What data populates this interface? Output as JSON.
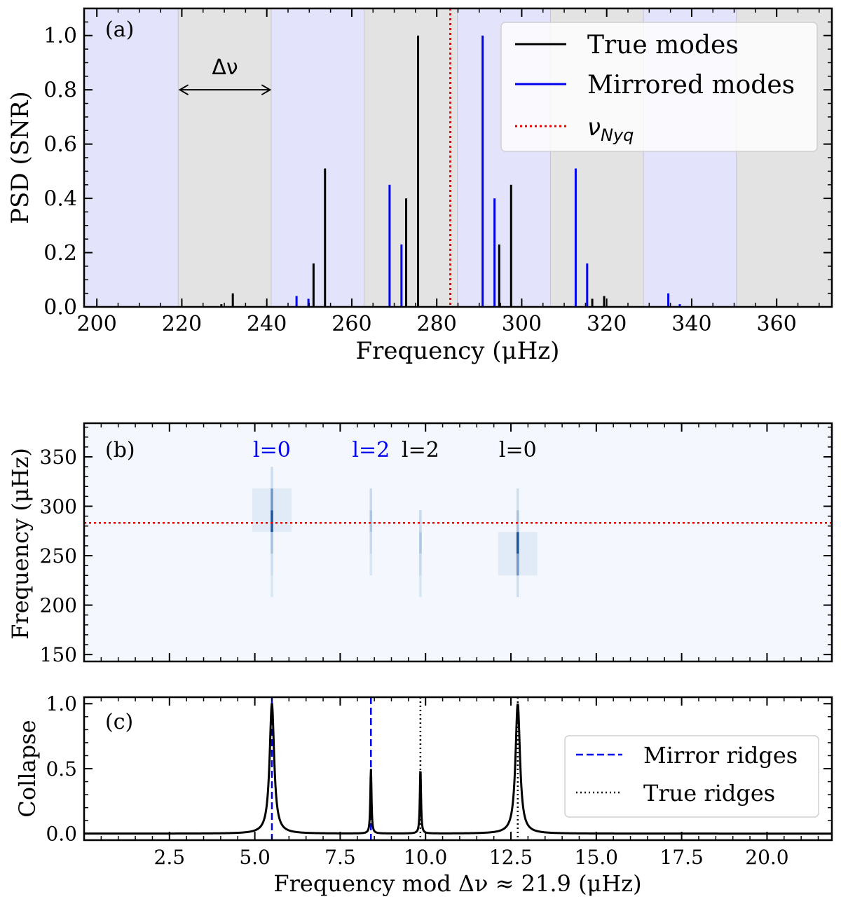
{
  "chart_data": [
    {
      "panel": "(a)",
      "type": "line",
      "xlabel": "Frequency (μHz)",
      "ylabel": "PSD (SNR)",
      "xlim": [
        197,
        373
      ],
      "ylim": [
        0,
        1.1
      ],
      "xticks": [
        "200",
        "220",
        "240",
        "260",
        "280",
        "300",
        "320",
        "340",
        "360"
      ],
      "yticks": [
        "0.0",
        "0.2",
        "0.4",
        "0.6",
        "0.8",
        "1.0"
      ],
      "nyquist": 283.2,
      "delta_nu": 21.9,
      "delta_nu_label": "Δν",
      "bands": [
        {
          "x0": 197,
          "x1": 219.2,
          "color": "blue"
        },
        {
          "x0": 219.2,
          "x1": 241.1,
          "color": "grey"
        },
        {
          "x0": 241.1,
          "x1": 263.0,
          "color": "blue"
        },
        {
          "x0": 263.0,
          "x1": 284.9,
          "color": "grey"
        },
        {
          "x0": 284.9,
          "x1": 306.8,
          "color": "blue"
        },
        {
          "x0": 306.8,
          "x1": 328.7,
          "color": "grey"
        },
        {
          "x0": 328.7,
          "x1": 350.6,
          "color": "blue"
        },
        {
          "x0": 350.6,
          "x1": 373,
          "color": "grey"
        }
      ],
      "arrow": {
        "x0": 219.2,
        "x1": 241.1,
        "y": 0.8
      },
      "legend": [
        "True modes",
        "Mirrored modes",
        "ν_Nyq"
      ],
      "legend_main": [
        "True modes",
        "Mirrored modes",
        "ν"
      ],
      "legend_sub": "Nyq",
      "series": [
        {
          "name": "True modes",
          "color": "#000000",
          "peaks": [
            {
              "x": 229.3,
              "y": 0.01
            },
            {
              "x": 232.0,
              "y": 0.05
            },
            {
              "x": 251.0,
              "y": 0.16
            },
            {
              "x": 253.7,
              "y": 0.51
            },
            {
              "x": 272.8,
              "y": 0.4
            },
            {
              "x": 275.6,
              "y": 1.0
            },
            {
              "x": 294.7,
              "y": 0.23
            },
            {
              "x": 297.5,
              "y": 0.45
            },
            {
              "x": 316.6,
              "y": 0.03
            },
            {
              "x": 319.4,
              "y": 0.04
            }
          ]
        },
        {
          "name": "Mirrored modes",
          "color": "#0000ee",
          "peaks": [
            {
              "x": 247.0,
              "y": 0.04
            },
            {
              "x": 249.8,
              "y": 0.03
            },
            {
              "x": 268.9,
              "y": 0.45
            },
            {
              "x": 271.7,
              "y": 0.23
            },
            {
              "x": 290.8,
              "y": 1.0
            },
            {
              "x": 293.6,
              "y": 0.4
            },
            {
              "x": 312.7,
              "y": 0.51
            },
            {
              "x": 315.4,
              "y": 0.16
            },
            {
              "x": 334.5,
              "y": 0.05
            },
            {
              "x": 337.2,
              "y": 0.01
            }
          ]
        }
      ]
    },
    {
      "panel": "(b)",
      "type": "heatmap",
      "ylabel": "Frequency (μHz)",
      "xlim": [
        0,
        21.9
      ],
      "ylim": [
        143,
        384
      ],
      "yticks": [
        "150",
        "200",
        "250",
        "300",
        "350"
      ],
      "nyquist": 283.2,
      "labels": [
        {
          "text": "l=0",
          "x": 5.5,
          "color": "#0000ee"
        },
        {
          "text": "l=2",
          "x": 8.4,
          "color": "#0000ee"
        },
        {
          "text": "l=2",
          "x": 9.85,
          "color": "#000000"
        },
        {
          "text": "l=0",
          "x": 12.7,
          "color": "#000000"
        }
      ],
      "ridges": [
        {
          "x": 5.5,
          "segments": [
            {
              "y0": 208,
              "y1": 230,
              "i": 0.03
            },
            {
              "y0": 230,
              "y1": 252,
              "i": 0.08
            },
            {
              "y0": 252,
              "y1": 274,
              "i": 0.25
            },
            {
              "y0": 274,
              "y1": 296,
              "i": 0.9
            },
            {
              "y0": 296,
              "y1": 318,
              "i": 0.5
            },
            {
              "y0": 318,
              "y1": 340,
              "i": 0.08
            }
          ]
        },
        {
          "x": 8.4,
          "segments": [
            {
              "y0": 230,
              "y1": 252,
              "i": 0.03
            },
            {
              "y0": 252,
              "y1": 274,
              "i": 0.1
            },
            {
              "y0": 274,
              "y1": 296,
              "i": 0.22
            },
            {
              "y0": 296,
              "y1": 318,
              "i": 0.1
            }
          ]
        },
        {
          "x": 9.85,
          "segments": [
            {
              "y0": 208,
              "y1": 230,
              "i": 0.03
            },
            {
              "y0": 230,
              "y1": 252,
              "i": 0.1
            },
            {
              "y0": 252,
              "y1": 274,
              "i": 0.22
            },
            {
              "y0": 274,
              "y1": 296,
              "i": 0.1
            }
          ]
        },
        {
          "x": 12.7,
          "segments": [
            {
              "y0": 208,
              "y1": 230,
              "i": 0.08
            },
            {
              "y0": 230,
              "y1": 252,
              "i": 0.5
            },
            {
              "y0": 252,
              "y1": 274,
              "i": 0.9
            },
            {
              "y0": 274,
              "y1": 296,
              "i": 0.25
            },
            {
              "y0": 296,
              "y1": 318,
              "i": 0.08
            }
          ]
        }
      ]
    },
    {
      "panel": "(c)",
      "type": "line",
      "xlabel": "Frequency mod Δν ≈ 21.9 (μHz)",
      "ylabel": "Collapse",
      "xlim": [
        0,
        21.9
      ],
      "ylim": [
        -0.05,
        1.05
      ],
      "xticks": [
        "2.5",
        "5.0",
        "7.5",
        "10.0",
        "12.5",
        "15.0",
        "17.5",
        "20.0"
      ],
      "yticks": [
        "0.0",
        "0.5",
        "1.0"
      ],
      "legend": [
        "Mirror ridges",
        "True ridges"
      ],
      "mirror_ridges": [
        5.5,
        8.4
      ],
      "true_ridges": [
        9.85,
        12.7
      ],
      "peaks": [
        {
          "x": 5.5,
          "h": 1.0,
          "w": 0.08
        },
        {
          "x": 8.4,
          "h": 0.5,
          "w": 0.02
        },
        {
          "x": 9.85,
          "h": 0.5,
          "w": 0.02
        },
        {
          "x": 12.7,
          "h": 1.0,
          "w": 0.08
        }
      ]
    }
  ]
}
